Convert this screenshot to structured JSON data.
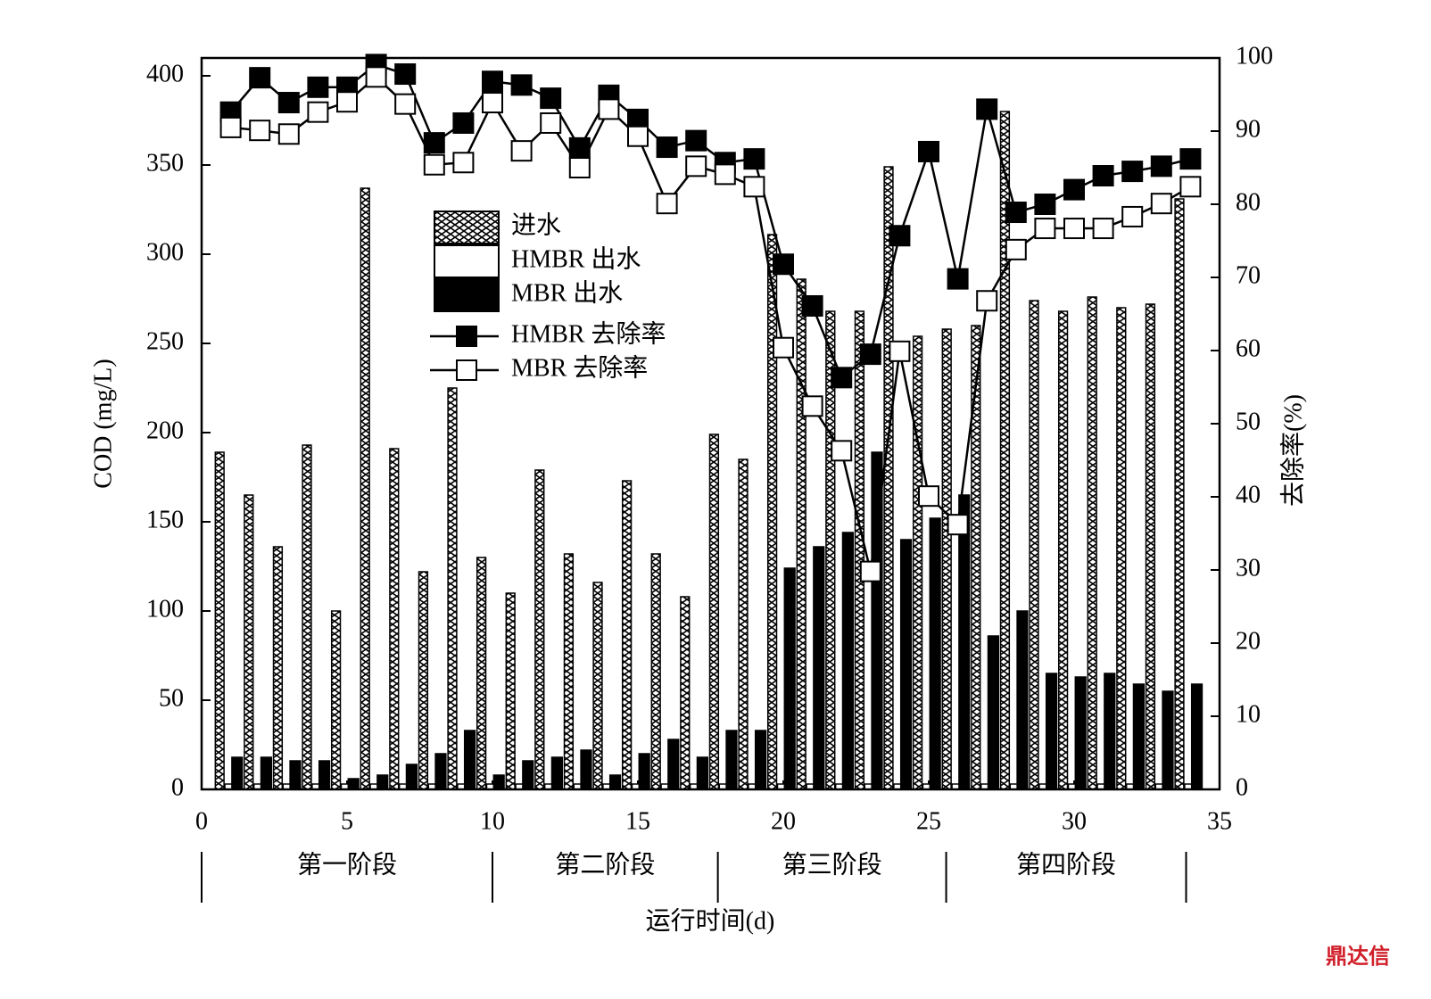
{
  "chart_data": {
    "type": "combo",
    "x_label": "运行时间(d)",
    "y_label": "COD (mg/L)",
    "y2_label": "去除率(%)",
    "x": [
      1,
      2,
      3,
      4,
      5,
      6,
      7,
      8,
      9,
      10,
      11,
      12,
      13,
      14,
      15,
      16,
      17,
      18,
      19,
      20,
      21,
      22,
      23,
      24,
      25,
      26,
      27,
      28,
      29,
      30,
      31,
      32,
      33,
      34
    ],
    "xlim": [
      0,
      35
    ],
    "xticks": [
      0,
      5,
      10,
      15,
      20,
      25,
      30,
      35
    ],
    "ylim": [
      0,
      410
    ],
    "yticks": [
      0,
      50,
      100,
      150,
      200,
      250,
      300,
      350,
      400
    ],
    "y2lim": [
      0,
      100
    ],
    "y2ticks": [
      0,
      10,
      20,
      30,
      40,
      50,
      60,
      70,
      80,
      90,
      100
    ],
    "legend": "upper center",
    "series": [
      {
        "name": "进水",
        "kind": "bar",
        "color": "#ffffff",
        "hatch": "x",
        "values": [
          189,
          165,
          136,
          193,
          100,
          337,
          191,
          122,
          225,
          130,
          110,
          179,
          132,
          116,
          173,
          132,
          108,
          199,
          185,
          311,
          286,
          268,
          268,
          349,
          254,
          258,
          260,
          380,
          274,
          268,
          276,
          270,
          272,
          331
        ]
      },
      {
        "name": "HMBR 出水",
        "kind": "bar",
        "color": "#ffffff",
        "values": [
          3,
          3,
          3,
          3,
          3,
          3,
          3,
          3,
          3,
          3,
          3,
          3,
          3,
          3,
          3,
          3,
          3,
          3,
          3,
          3,
          3,
          3,
          3,
          3,
          3,
          3,
          3,
          3,
          3,
          3,
          3,
          3,
          3,
          3
        ]
      },
      {
        "name": "MBR 出水",
        "kind": "bar",
        "color": "#000000",
        "values": [
          18,
          18,
          16,
          16,
          6,
          8,
          14,
          20,
          33,
          8,
          16,
          18,
          22,
          8,
          20,
          28,
          18,
          33,
          33,
          124,
          136,
          144,
          189,
          140,
          152,
          165,
          86,
          100,
          65,
          63,
          65,
          59,
          55,
          59
        ]
      },
      {
        "name": "HMBR 去除率",
        "kind": "line",
        "axis": "y2",
        "color": "#000000",
        "marker_fill": "#000000",
        "values": [
          92.6,
          97.3,
          93.9,
          96,
          96,
          99.1,
          97.8,
          88.4,
          91.1,
          96.8,
          96.3,
          94.5,
          87.7,
          94.9,
          91.6,
          87.8,
          88.7,
          85.7,
          86.2,
          71.8,
          66.1,
          56.3,
          59.5,
          75.7,
          87.2,
          69.8,
          93,
          78.9,
          80,
          82,
          83.9,
          84.5,
          85.2,
          86.2
        ]
      },
      {
        "name": "MBR 去除率",
        "kind": "line",
        "axis": "y2",
        "color": "#000000",
        "marker_fill": "#ffffff",
        "values": [
          90.5,
          90.1,
          89.6,
          92.6,
          94,
          97.4,
          93.7,
          85.4,
          85.7,
          93.9,
          87.3,
          91.1,
          85,
          93,
          89.3,
          80.1,
          85.2,
          84.1,
          82.4,
          60.4,
          52.4,
          46.3,
          29.8,
          59.9,
          40.1,
          36.2,
          66.8,
          73.8,
          76.7,
          76.7,
          76.7,
          78.3,
          80.1,
          82.4
        ]
      }
    ],
    "stages": [
      "第一阶段",
      "第二阶段",
      "第三阶段",
      "第四阶段"
    ],
    "stage_bounds": [
      0,
      10,
      17.75,
      25.6,
      33.85
    ],
    "watermark": "鼎达信"
  }
}
